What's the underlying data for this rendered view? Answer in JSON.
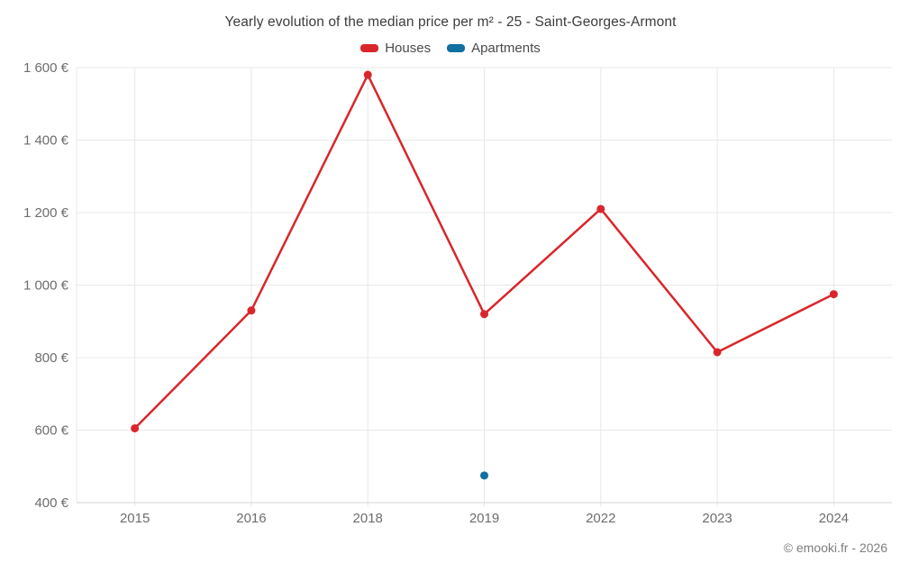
{
  "page": {
    "title": "Yearly evolution of the median price per m² - 25 - Saint-Georges-Armont",
    "credit": "© emooki.fr - 2026"
  },
  "legend": {
    "items": [
      {
        "label": "Houses",
        "color": "#d9262c"
      },
      {
        "label": "Apartments",
        "color": "#10709f"
      }
    ]
  },
  "chart_data": {
    "type": "line",
    "title": "Yearly evolution of the median price per m² - 25 - Saint-Georges-Armont",
    "categories": [
      "2015",
      "2016",
      "2018",
      "2019",
      "2022",
      "2023",
      "2024"
    ],
    "series": [
      {
        "name": "Houses",
        "color": "#d9262c",
        "values": [
          605,
          930,
          1580,
          920,
          1210,
          815,
          975
        ]
      },
      {
        "name": "Apartments",
        "color": "#10709f",
        "values": [
          null,
          null,
          null,
          475,
          null,
          null,
          null
        ]
      }
    ],
    "ylim": [
      400,
      1600
    ],
    "y_ticks": [
      400,
      600,
      800,
      1000,
      1200,
      1400,
      1600
    ],
    "y_tick_labels": [
      "400 €",
      "600 €",
      "800 €",
      "1 000 €",
      "1 200 €",
      "1 400 €",
      "1 600 €"
    ],
    "xlabel": "",
    "ylabel": "",
    "grid": true,
    "legend_position": "top",
    "marker": "circle"
  },
  "colors": {
    "background": "#ffffff",
    "grid": "#e8e8e8",
    "axis_line": "#d4d4d4",
    "tick_text": "#6d6d6d",
    "title_text": "#3d3d3d",
    "legend_text": "#4a4a4a",
    "credit_text": "#7d7d7d"
  }
}
